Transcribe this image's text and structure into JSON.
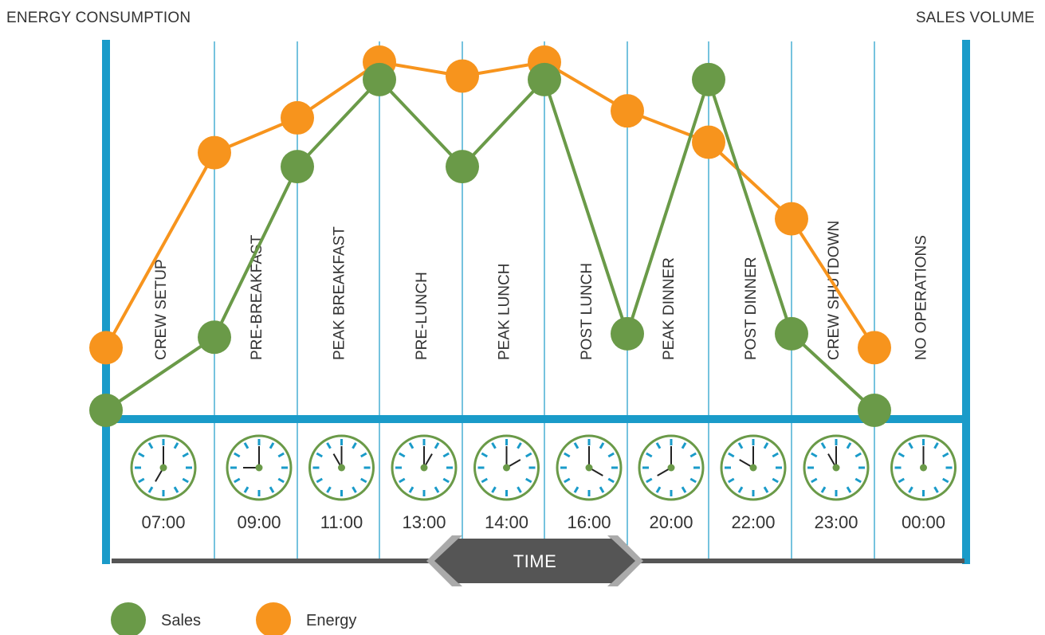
{
  "chart_data": {
    "type": "line",
    "left_axis_label": "ENERGY CONSUMPTION",
    "right_axis_label": "SALES VOLUME",
    "x_axis_label": "TIME",
    "x": [
      "07:00",
      "09:00",
      "11:00",
      "13:00",
      "14:00",
      "16:00",
      "20:00",
      "22:00",
      "23:00",
      "00:00"
    ],
    "phases": [
      "CREW SETUP",
      "PRE-BREAKFAST",
      "PEAK BREAKFAST",
      "PRE-LUNCH",
      "PEAK LUNCH",
      "POST LUNCH",
      "PEAK DINNER",
      "POST DINNER",
      "CREW SHUTDOWN",
      "NO OPERATIONS"
    ],
    "ylim": [
      0,
      100
    ],
    "grid": "vertical lines between time periods",
    "legend_position": "bottom-left",
    "series": [
      {
        "name": "Sales",
        "color": "#6a9a48",
        "values": [
          0,
          21,
          70,
          95,
          70,
          95,
          22,
          95,
          22,
          0
        ]
      },
      {
        "name": "Energy",
        "color": "#f7941d",
        "values": [
          18,
          74,
          84,
          100,
          96,
          100,
          86,
          77,
          55,
          18
        ]
      }
    ],
    "clocks": [
      {
        "hour": 7,
        "minute": 0
      },
      {
        "hour": 9,
        "minute": 0
      },
      {
        "hour": 11,
        "minute": 0
      },
      {
        "hour": 13,
        "minute": 0
      },
      {
        "hour": 14,
        "minute": 0
      },
      {
        "hour": 16,
        "minute": 0
      },
      {
        "hour": 20,
        "minute": 0
      },
      {
        "hour": 22,
        "minute": 0
      },
      {
        "hour": 23,
        "minute": 0
      },
      {
        "hour": 0,
        "minute": 0
      }
    ]
  },
  "colors": {
    "axis": "#1a9bc9",
    "grid": "#1a9bc9",
    "clock": "#6a9a48",
    "clock_ticks": "#1a9bc9",
    "arrow": "#555555",
    "arrow_tip": "#aaaaaa"
  }
}
